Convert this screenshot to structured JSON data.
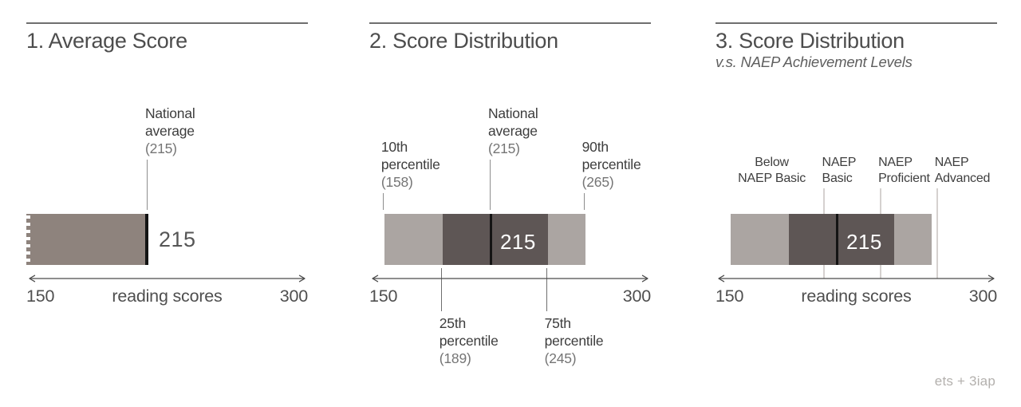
{
  "page": {
    "credit": "ets + 3iap",
    "background": "#ffffff"
  },
  "chart_data": [
    {
      "id": "average-score",
      "type": "bar",
      "title": "1. Average Score",
      "subtitle": "",
      "xlabel": "reading scores",
      "axis": {
        "min": 150,
        "max": 300,
        "start_tick": "150",
        "end_tick": "300",
        "mid_label": "reading scores"
      },
      "bar": {
        "torn_left_edge": true,
        "segments": [
          {
            "name": "average-score-bar",
            "from": 150,
            "to": 215,
            "color": "#8e837d"
          }
        ],
        "end_cap_value": 215,
        "mean_value": null,
        "value_label": {
          "text": "215",
          "placement": "right-of-bar",
          "color": "#565656"
        }
      },
      "annotations": [
        {
          "name": "national-average",
          "value": 215,
          "lines": [
            "National",
            "average",
            "(215)"
          ],
          "side": "above",
          "row": "high",
          "align": "left",
          "leader": true
        }
      ],
      "achievement_levels": []
    },
    {
      "id": "score-distribution",
      "type": "bar",
      "title": "2. Score Distribution",
      "subtitle": "",
      "xlabel": "",
      "axis": {
        "min": 150,
        "max": 300,
        "start_tick": "150",
        "end_tick": "300",
        "mid_label": ""
      },
      "bar": {
        "torn_left_edge": false,
        "segments": [
          {
            "name": "percentile-10-to-25",
            "from": 158,
            "to": 189,
            "color": "#aba5a2"
          },
          {
            "name": "percentile-25-to-75",
            "from": 189,
            "to": 245,
            "color": "#5e5655"
          },
          {
            "name": "percentile-75-to-90",
            "from": 245,
            "to": 265,
            "color": "#aba5a2"
          }
        ],
        "end_cap_value": null,
        "mean_value": 215,
        "value_label": {
          "text": "215",
          "placement": "inside-bar",
          "color": "#ffffff"
        }
      },
      "annotations": [
        {
          "name": "percentile-10th",
          "value": 158,
          "lines": [
            "10th",
            "percentile",
            "(158)"
          ],
          "side": "above",
          "row": "low",
          "align": "left",
          "leader": true
        },
        {
          "name": "national-average",
          "value": 215,
          "lines": [
            "National",
            "average",
            "(215)"
          ],
          "side": "above",
          "row": "high",
          "align": "left",
          "leader": true
        },
        {
          "name": "percentile-90th",
          "value": 265,
          "lines": [
            "90th",
            "percentile",
            "(265)"
          ],
          "side": "above",
          "row": "low",
          "align": "left",
          "leader": true
        },
        {
          "name": "percentile-25th",
          "value": 189,
          "lines": [
            "25th",
            "percentile",
            "(189)"
          ],
          "side": "below",
          "row": "low",
          "align": "left",
          "leader": true
        },
        {
          "name": "percentile-75th",
          "value": 245,
          "lines": [
            "75th",
            "percentile",
            "(245)"
          ],
          "side": "below",
          "row": "low",
          "align": "left",
          "leader": true
        }
      ],
      "achievement_levels": []
    },
    {
      "id": "score-distribution-vs-naep-levels",
      "type": "bar",
      "title": "3. Score Distribution",
      "subtitle": "v.s. NAEP Achievement Levels",
      "xlabel": "reading scores",
      "axis": {
        "min": 150,
        "max": 300,
        "start_tick": "150",
        "end_tick": "300",
        "mid_label": "reading scores"
      },
      "bar": {
        "torn_left_edge": false,
        "segments": [
          {
            "name": "percentile-10-to-25",
            "from": 158,
            "to": 189,
            "color": "#aba5a2"
          },
          {
            "name": "percentile-25-to-75",
            "from": 189,
            "to": 245,
            "color": "#5e5655"
          },
          {
            "name": "percentile-75-to-90",
            "from": 245,
            "to": 265,
            "color": "#aba5a2"
          }
        ],
        "end_cap_value": null,
        "mean_value": 215,
        "value_label": {
          "text": "215",
          "placement": "inside-bar",
          "color": "#ffffff"
        }
      },
      "annotations": [],
      "achievement_levels": [
        {
          "name": "below-naep-basic",
          "lines": [
            "Below",
            "NAEP Basic"
          ],
          "cutoff": null,
          "label_anchor": 180,
          "align": "center"
        },
        {
          "name": "naep-basic",
          "lines": [
            "NAEP",
            "Basic"
          ],
          "cutoff": 208,
          "align": "left"
        },
        {
          "name": "naep-proficient",
          "lines": [
            "NAEP",
            "Proficient"
          ],
          "cutoff": 238,
          "align": "left"
        },
        {
          "name": "naep-advanced",
          "lines": [
            "NAEP",
            "Advanced"
          ],
          "cutoff": 268,
          "align": "left"
        }
      ]
    }
  ]
}
